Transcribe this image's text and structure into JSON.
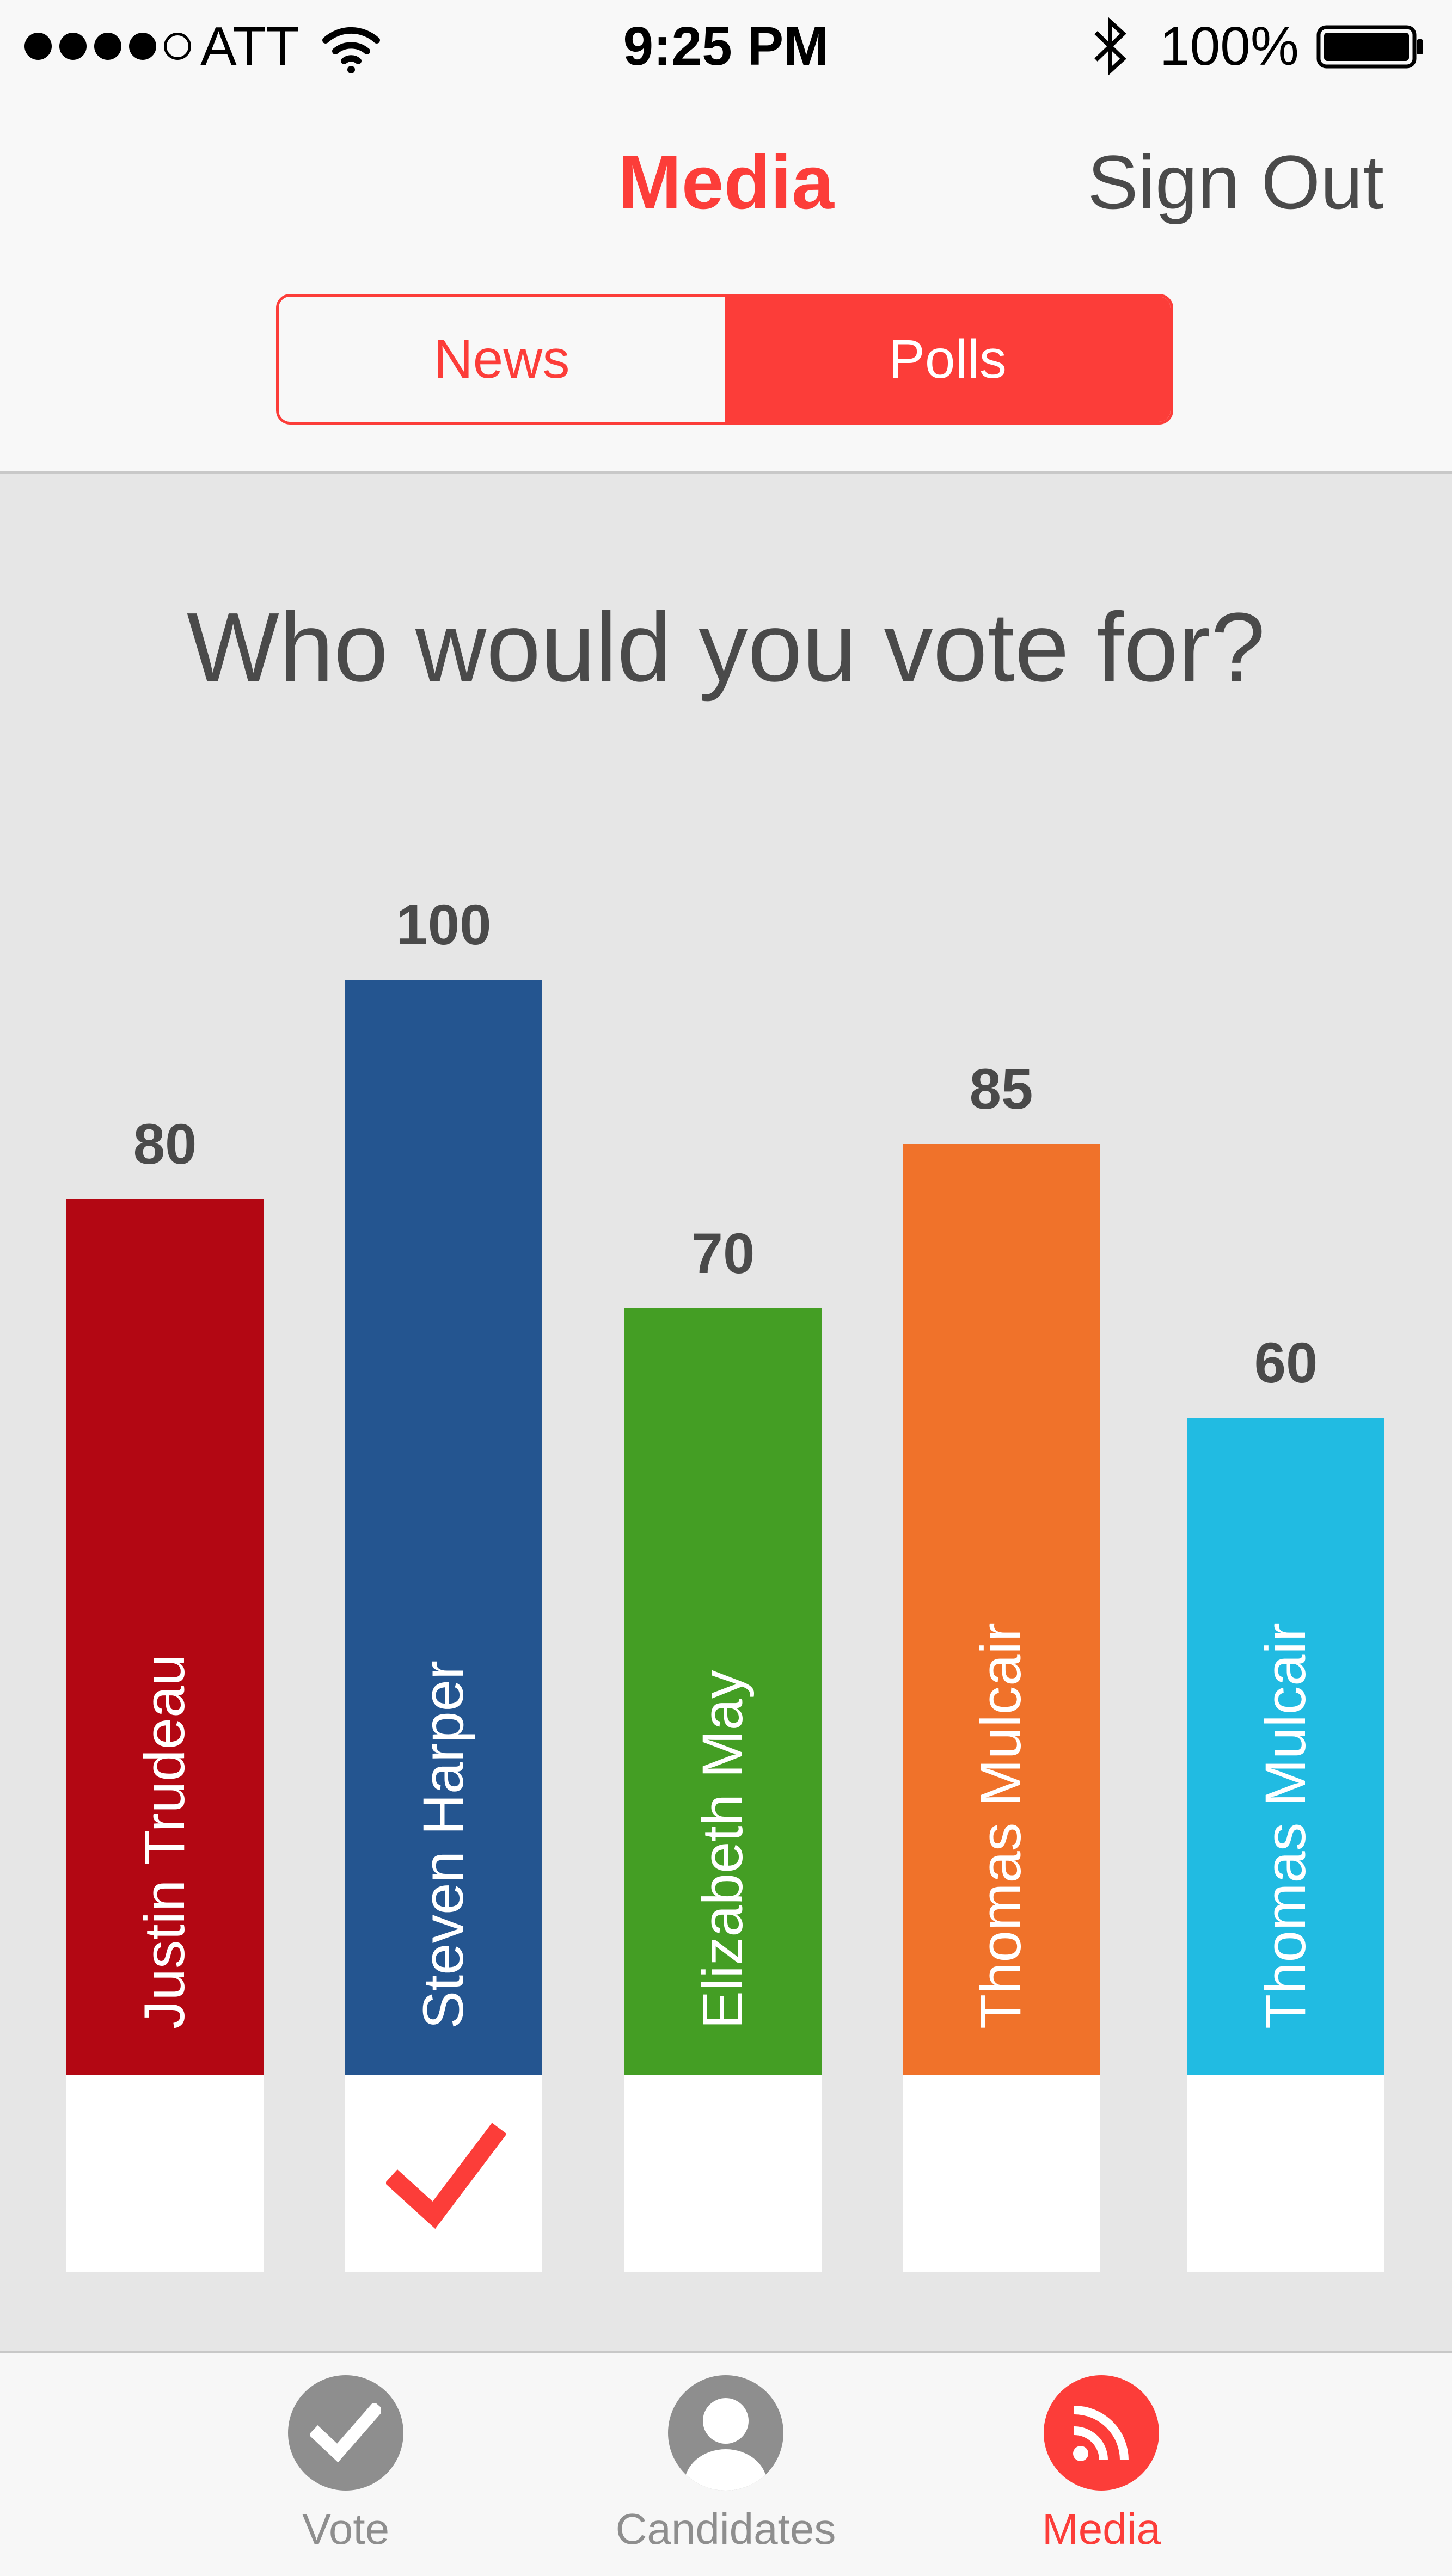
{
  "status_bar": {
    "carrier": "ATT",
    "time": "9:25 PM",
    "battery": "100%",
    "signal_bars_filled": 4,
    "signal_bars_total": 5
  },
  "nav": {
    "title": "Media",
    "sign_out": "Sign Out"
  },
  "segments": {
    "news": "News",
    "polls": "Polls",
    "selected": "Polls"
  },
  "poll": {
    "question": "Who would you vote for?",
    "selected_candidate": "Steven Harper"
  },
  "chart_data": {
    "type": "bar",
    "title": "Who would you vote for?",
    "categories": [
      "Justin Trudeau",
      "Steven Harper",
      "Elizabeth May",
      "Thomas Mulcair",
      "Thomas Mulcair"
    ],
    "values": [
      80,
      100,
      70,
      85,
      60
    ],
    "value_labels": [
      "80",
      "100",
      "70",
      "85",
      "60"
    ],
    "colors": [
      "#b30713",
      "#245590",
      "#449e24",
      "#f0722a",
      "#21bbe2"
    ],
    "ylim": [
      0,
      100
    ],
    "grid": false,
    "legend": "none"
  },
  "tabs": [
    {
      "label": "Vote",
      "icon": "check-circle-icon",
      "active": false
    },
    {
      "label": "Candidates",
      "icon": "person-icon",
      "active": false
    },
    {
      "label": "Media",
      "icon": "rss-icon",
      "active": true
    }
  ],
  "colors": {
    "accent": "#fc3d39",
    "inactive_icon": "#8e8e8e",
    "text_dark": "#4a4a4a",
    "background": "#e6e6e6"
  }
}
